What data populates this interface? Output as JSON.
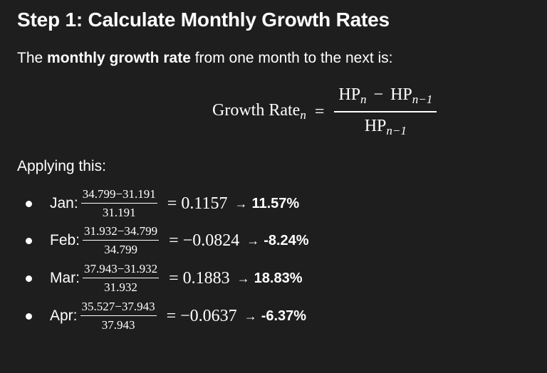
{
  "heading": "Step 1: Calculate Monthly Growth Rates",
  "intro": {
    "before": "The ",
    "bold": "monthly growth rate",
    "after": " from one month to the next is:"
  },
  "formula": {
    "lhs": "Growth Rate",
    "lhs_sub": "n",
    "equals": "=",
    "num_a": "HP",
    "num_a_sub": "n",
    "minus": "−",
    "num_b": "HP",
    "num_b_sub": "n−1",
    "den": "HP",
    "den_sub": "n−1"
  },
  "applying": "Applying this:",
  "items": [
    {
      "month": "Jan:",
      "numerator": "34.799−31.191",
      "denominator": "31.191",
      "result": "= 0.1157",
      "arrow": "→",
      "percent": "11.57%"
    },
    {
      "month": "Feb:",
      "numerator": "31.932−34.799",
      "denominator": "34.799",
      "result": "= −0.0824",
      "arrow": "→",
      "percent": "-8.24%"
    },
    {
      "month": "Mar:",
      "numerator": "37.943−31.932",
      "denominator": "31.932",
      "result": "= 0.1883",
      "arrow": "→",
      "percent": "18.83%"
    },
    {
      "month": "Apr:",
      "numerator": "35.527−37.943",
      "denominator": "37.943",
      "result": "= −0.0637",
      "arrow": "→",
      "percent": "-6.37%"
    }
  ]
}
